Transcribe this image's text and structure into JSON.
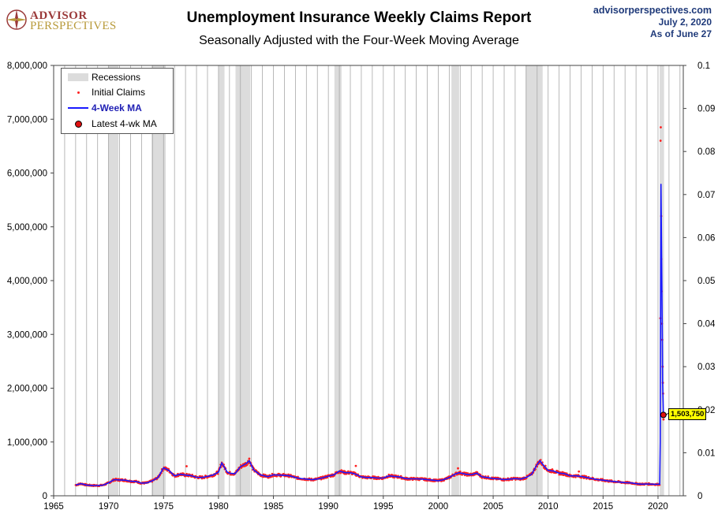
{
  "header": {
    "logo_line1": "ADVISOR",
    "logo_line2": "PERSPECTIVES",
    "site": "advisorperspectives.com",
    "date": "July 2, 2020",
    "as_of": "As of June 27"
  },
  "colors": {
    "initial_claims": "#ff2020",
    "ma": "#1a1aff",
    "recession": "#dcdcdc",
    "callout_bg": "#ffff00"
  },
  "chart_data": {
    "type": "line",
    "title": "Unemployment Insurance Weekly Claims Report",
    "subtitle": "Seasonally Adjusted with the Four-Week Moving Average",
    "xlim": [
      1965,
      2022.3
    ],
    "ylim": [
      0,
      8000000
    ],
    "y2lim": [
      0,
      0.1
    ],
    "x_ticks": [
      1965,
      1970,
      1975,
      1980,
      1985,
      1990,
      1995,
      2000,
      2005,
      2010,
      2015,
      2020
    ],
    "x_tick_labels": [
      "1965",
      "1970",
      "1975",
      "1980",
      "1985",
      "1990",
      "1995",
      "2000",
      "2005",
      "2010",
      "2015",
      "2020"
    ],
    "y_ticks": [
      0,
      1000000,
      2000000,
      3000000,
      4000000,
      5000000,
      6000000,
      7000000,
      8000000
    ],
    "y_tick_labels": [
      "0",
      "1,000,000",
      "2,000,000",
      "3,000,000",
      "4,000,000",
      "5,000,000",
      "6,000,000",
      "7,000,000",
      "8,000,000"
    ],
    "y2_ticks": [
      0,
      0.01,
      0.02,
      0.03,
      0.04,
      0.05,
      0.06,
      0.07,
      0.08,
      0.09,
      0.1
    ],
    "y2_tick_labels": [
      "0",
      "0.01",
      "0.02",
      "0.03",
      "0.04",
      "0.05",
      "0.06",
      "0.07",
      "0.08",
      "0.09",
      "0.1"
    ],
    "grid": "vertical lines each year",
    "legend_position": "top-left",
    "legend": {
      "recessions": "Recessions",
      "initial_claims": "Initial Claims",
      "ma": "4-Week MA",
      "latest": "Latest 4-wk MA"
    },
    "recessions": [
      [
        1969.95,
        1970.9
      ],
      [
        1973.9,
        1975.2
      ],
      [
        1980.0,
        1980.55
      ],
      [
        1981.55,
        1982.9
      ],
      [
        1990.55,
        1991.2
      ],
      [
        2001.2,
        2001.9
      ],
      [
        2007.95,
        2009.5
      ],
      [
        2020.15,
        2020.55
      ]
    ],
    "series": [
      {
        "name": "4-Week MA",
        "points": [
          [
            1967.0,
            200000
          ],
          [
            1967.5,
            225000
          ],
          [
            1968.0,
            200000
          ],
          [
            1968.5,
            192000
          ],
          [
            1969.0,
            190000
          ],
          [
            1969.5,
            198000
          ],
          [
            1970.0,
            240000
          ],
          [
            1970.5,
            300000
          ],
          [
            1971.0,
            295000
          ],
          [
            1971.5,
            290000
          ],
          [
            1972.0,
            270000
          ],
          [
            1972.5,
            265000
          ],
          [
            1973.0,
            235000
          ],
          [
            1973.5,
            240000
          ],
          [
            1974.0,
            280000
          ],
          [
            1974.5,
            340000
          ],
          [
            1975.0,
            520000
          ],
          [
            1975.5,
            470000
          ],
          [
            1976.0,
            370000
          ],
          [
            1976.5,
            400000
          ],
          [
            1977.0,
            385000
          ],
          [
            1977.5,
            375000
          ],
          [
            1978.0,
            345000
          ],
          [
            1978.5,
            340000
          ],
          [
            1979.0,
            360000
          ],
          [
            1979.5,
            385000
          ],
          [
            1980.0,
            440000
          ],
          [
            1980.3,
            610000
          ],
          [
            1980.8,
            440000
          ],
          [
            1981.0,
            420000
          ],
          [
            1981.5,
            410000
          ],
          [
            1982.0,
            540000
          ],
          [
            1982.5,
            595000
          ],
          [
            1982.8,
            650000
          ],
          [
            1983.2,
            480000
          ],
          [
            1983.8,
            390000
          ],
          [
            1984.5,
            355000
          ],
          [
            1985.0,
            390000
          ],
          [
            1985.5,
            385000
          ],
          [
            1986.0,
            380000
          ],
          [
            1986.5,
            370000
          ],
          [
            1987.0,
            340000
          ],
          [
            1987.5,
            320000
          ],
          [
            1988.0,
            310000
          ],
          [
            1988.5,
            300000
          ],
          [
            1989.0,
            310000
          ],
          [
            1989.5,
            335000
          ],
          [
            1990.0,
            365000
          ],
          [
            1990.5,
            390000
          ],
          [
            1991.0,
            460000
          ],
          [
            1991.5,
            430000
          ],
          [
            1992.0,
            430000
          ],
          [
            1992.5,
            400000
          ],
          [
            1993.0,
            350000
          ],
          [
            1993.5,
            340000
          ],
          [
            1994.0,
            340000
          ],
          [
            1994.5,
            330000
          ],
          [
            1995.0,
            330000
          ],
          [
            1995.5,
            370000
          ],
          [
            1996.0,
            360000
          ],
          [
            1996.5,
            350000
          ],
          [
            1997.0,
            320000
          ],
          [
            1997.5,
            315000
          ],
          [
            1998.0,
            315000
          ],
          [
            1998.5,
            310000
          ],
          [
            1999.0,
            300000
          ],
          [
            1999.5,
            290000
          ],
          [
            2000.0,
            280000
          ],
          [
            2000.5,
            300000
          ],
          [
            2001.0,
            340000
          ],
          [
            2001.5,
            400000
          ],
          [
            2001.9,
            430000
          ],
          [
            2002.5,
            400000
          ],
          [
            2003.0,
            390000
          ],
          [
            2003.5,
            420000
          ],
          [
            2004.0,
            350000
          ],
          [
            2004.5,
            340000
          ],
          [
            2005.0,
            320000
          ],
          [
            2005.5,
            315000
          ],
          [
            2006.0,
            300000
          ],
          [
            2006.5,
            310000
          ],
          [
            2007.0,
            320000
          ],
          [
            2007.5,
            310000
          ],
          [
            2008.0,
            340000
          ],
          [
            2008.5,
            400000
          ],
          [
            2009.0,
            580000
          ],
          [
            2009.25,
            650000
          ],
          [
            2009.6,
            560000
          ],
          [
            2010.0,
            470000
          ],
          [
            2010.5,
            460000
          ],
          [
            2011.0,
            420000
          ],
          [
            2011.5,
            410000
          ],
          [
            2012.0,
            370000
          ],
          [
            2012.5,
            370000
          ],
          [
            2013.0,
            360000
          ],
          [
            2013.5,
            340000
          ],
          [
            2014.0,
            320000
          ],
          [
            2014.5,
            300000
          ],
          [
            2015.0,
            290000
          ],
          [
            2015.5,
            275000
          ],
          [
            2016.0,
            265000
          ],
          [
            2016.5,
            255000
          ],
          [
            2017.0,
            245000
          ],
          [
            2017.5,
            240000
          ],
          [
            2018.0,
            225000
          ],
          [
            2018.5,
            215000
          ],
          [
            2019.0,
            220000
          ],
          [
            2019.5,
            215000
          ],
          [
            2019.9,
            212000
          ],
          [
            2020.15,
            215000
          ],
          [
            2020.2,
            998000
          ],
          [
            2020.23,
            3300000
          ],
          [
            2020.27,
            5800000
          ],
          [
            2020.3,
            5200000
          ],
          [
            2020.35,
            4000000
          ],
          [
            2020.39,
            3000000
          ],
          [
            2020.42,
            2100000
          ],
          [
            2020.46,
            1750000
          ],
          [
            2020.49,
            1503750
          ]
        ]
      },
      {
        "name": "Initial Claims",
        "points": [
          [
            2020.21,
            3300000
          ],
          [
            2020.23,
            6600000
          ],
          [
            2020.25,
            6850000
          ],
          [
            2020.29,
            5200000
          ],
          [
            2020.3,
            4400000
          ],
          [
            2020.33,
            3800000
          ],
          [
            2020.35,
            3200000
          ],
          [
            2020.38,
            2900000
          ],
          [
            2020.42,
            2400000
          ],
          [
            2020.44,
            2100000
          ],
          [
            2020.46,
            1900000
          ],
          [
            2020.48,
            1500000
          ],
          [
            2020.5,
            1420000
          ],
          [
            1977.1,
            550000
          ],
          [
            1992.5,
            555000
          ],
          [
            2001.8,
            510000
          ],
          [
            2012.8,
            450000
          ],
          [
            1982.8,
            690000
          ]
        ]
      }
    ],
    "latest": {
      "label": "1,503,750",
      "x": 2020.49,
      "y": 1503750
    }
  }
}
